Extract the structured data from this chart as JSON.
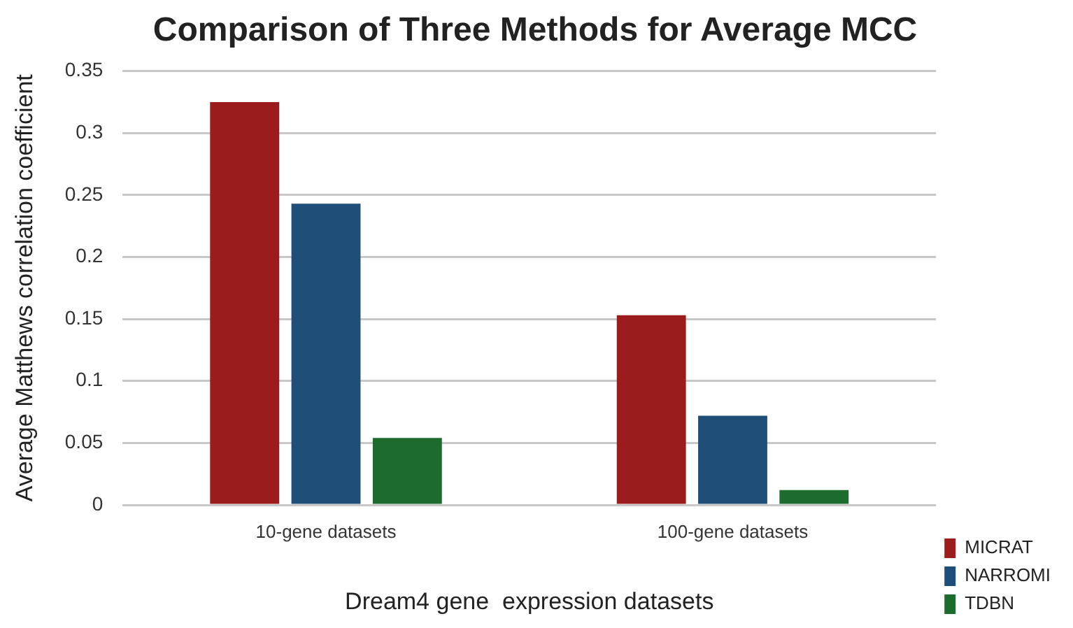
{
  "chart_data": {
    "type": "bar",
    "title": "Comparison of Three Methods for Average MCC",
    "xlabel": "Dream4 gene  expression datasets",
    "ylabel": "Average Matthews correlation coefficient",
    "categories": [
      "10-gene datasets",
      "100-gene datasets"
    ],
    "series": [
      {
        "name": "MICRAT",
        "color": "#9b1c1c",
        "values": [
          0.325,
          0.153
        ]
      },
      {
        "name": "NARROMI",
        "color": "#1f4e79",
        "values": [
          0.243,
          0.072
        ]
      },
      {
        "name": "TDBN",
        "color": "#1e6b2e",
        "values": [
          0.054,
          0.012
        ]
      }
    ],
    "ylim": [
      0,
      0.35
    ],
    "yticks": [
      0,
      0.05,
      0.1,
      0.15,
      0.2,
      0.25,
      0.3,
      0.35
    ],
    "grid": "y",
    "legend": "bottom right"
  }
}
